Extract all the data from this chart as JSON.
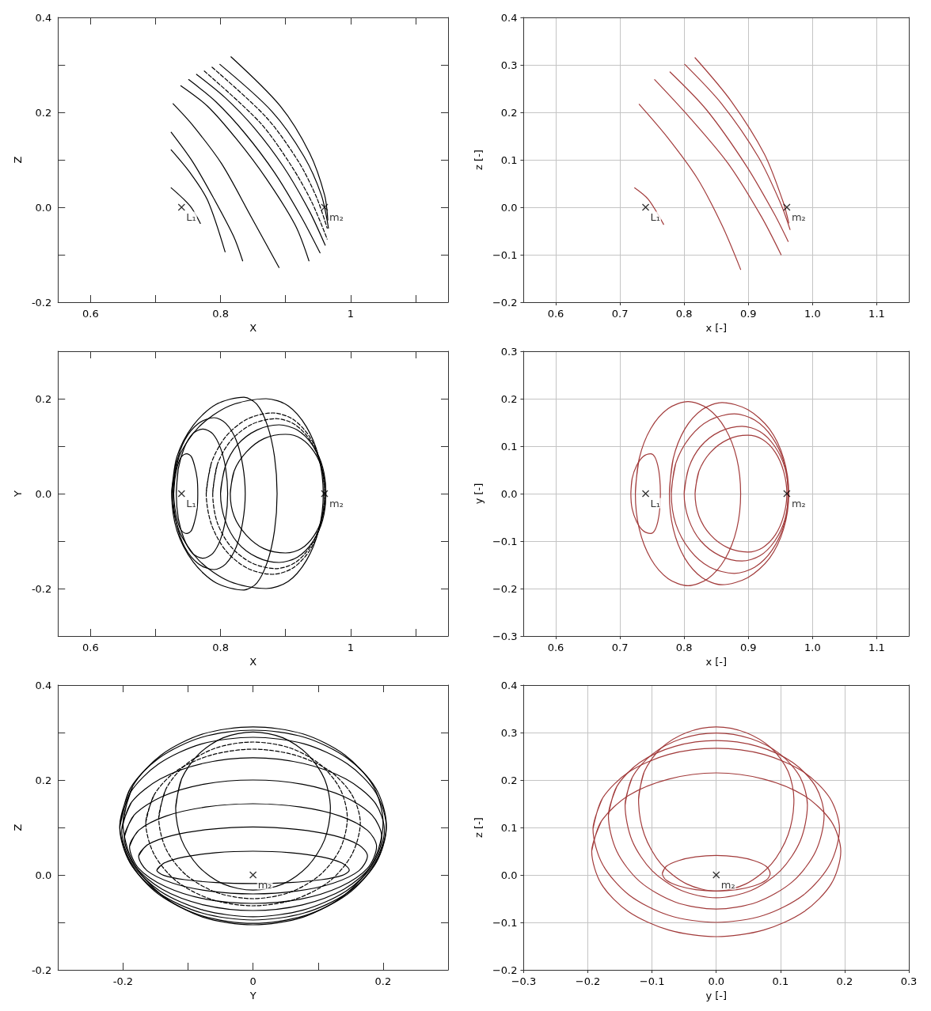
{
  "chart_data": [
    {
      "type": "line",
      "xlabel": "X",
      "ylabel": "Z",
      "xlim": [
        0.55,
        1.15
      ],
      "ylim": [
        -0.2,
        0.4
      ],
      "xticks": [
        0.6,
        {
          "value": 0.7,
          "label": null
        },
        0.8,
        {
          "value": 0.9,
          "label": null
        },
        1,
        {
          "value": 1.1,
          "label": null
        }
      ],
      "yticks": [
        -0.2,
        {
          "value": -0.1,
          "label": null
        },
        {
          "value": 0,
          "label": "0.0"
        },
        {
          "value": 0.1,
          "label": null
        },
        0.2,
        {
          "value": 0.3,
          "label": null
        },
        0.4
      ],
      "grid": false,
      "marker": "none",
      "annotations": [
        {
          "text": "L₁",
          "x": 0.74,
          "y": 0
        },
        {
          "text": "m₂",
          "x": 0.96,
          "y": 0
        }
      ],
      "series": [
        {
          "color": "#000000",
          "x": [
            0.724,
            0.753,
            0.769
          ],
          "values": [
            0.041,
            0.003,
            -0.034
          ]
        },
        {
          "color": "#000000",
          "x": [
            0.724,
            0.753,
            0.78,
            0.807
          ],
          "values": [
            0.121,
            0.073,
            0.015,
            -0.094
          ]
        },
        {
          "color": "#000000",
          "x": [
            0.724,
            0.757,
            0.789,
            0.82,
            0.834
          ],
          "values": [
            0.158,
            0.096,
            0.02,
            -0.061,
            -0.113
          ]
        },
        {
          "color": "#000000",
          "x": [
            0.727,
            0.757,
            0.802,
            0.847,
            0.89
          ],
          "values": [
            0.218,
            0.173,
            0.091,
            -0.02,
            -0.127
          ]
        },
        {
          "color": "#000000",
          "x": [
            0.739,
            0.78,
            0.825,
            0.87,
            0.915,
            0.936
          ],
          "values": [
            0.256,
            0.213,
            0.143,
            0.061,
            -0.038,
            -0.113
          ]
        },
        {
          "color": "#000000",
          "x": [
            0.751,
            0.793,
            0.838,
            0.883,
            0.924,
            0.953
          ],
          "values": [
            0.269,
            0.222,
            0.155,
            0.073,
            -0.02,
            -0.096
          ]
        },
        {
          "color": "#000000",
          "x": [
            0.763,
            0.807,
            0.852,
            0.897,
            0.937,
            0.961
          ],
          "values": [
            0.28,
            0.231,
            0.167,
            0.085,
            -0.009,
            -0.08
          ]
        },
        {
          "color": "#000000",
          "line_style": "dashed",
          "x": [
            0.775,
            0.861,
            0.91,
            0.941,
            0.964
          ],
          "values": [
            0.287,
            0.178,
            0.085,
            0.009,
            -0.067
          ]
        },
        {
          "color": "#000000",
          "line_style": "dashed",
          "x": [
            0.787,
            0.87,
            0.92,
            0.948,
            0.964
          ],
          "values": [
            0.295,
            0.19,
            0.096,
            0.02,
            -0.044
          ]
        },
        {
          "color": "#000000",
          "x": [
            0.799,
            0.879,
            0.928,
            0.955,
            0.966
          ],
          "values": [
            0.301,
            0.202,
            0.108,
            0.026,
            -0.044
          ]
        },
        {
          "color": "#000000",
          "x": [
            0.816,
            0.892,
            0.937,
            0.96,
            0.965
          ],
          "values": [
            0.317,
            0.213,
            0.114,
            0.026,
            -0.027
          ]
        },
        {
          "type": "scatter",
          "marker": "cross",
          "color": "#000000",
          "x": [
            0.74,
            0.96
          ],
          "values": [
            0,
            0
          ]
        }
      ]
    },
    {
      "type": "line",
      "xlabel": "x [-]",
      "ylabel": "z [-]",
      "xlim": [
        0.55,
        1.15
      ],
      "ylim": [
        -0.2,
        0.4
      ],
      "xticks": [
        0.6,
        0.7,
        0.8,
        0.9,
        {
          "value": 1,
          "label": "1.0"
        },
        1.1
      ],
      "yticks": [
        {
          "value": -0.2,
          "label": "−0.2"
        },
        {
          "value": -0.1,
          "label": "−0.1"
        },
        {
          "value": 0,
          "label": "0.0"
        },
        0.1,
        0.2,
        0.3,
        0.4
      ],
      "grid": true,
      "marker": "none",
      "annotations": [
        {
          "text": "L₁",
          "x": 0.74,
          "y": 0
        },
        {
          "text": "m₂",
          "x": 0.96,
          "y": 0
        }
      ],
      "series": [
        {
          "color": "#a23b3b",
          "x": [
            0.723,
            0.744,
            0.768
          ],
          "values": [
            0.041,
            0.017,
            -0.036
          ]
        },
        {
          "color": "#a23b3b",
          "x": [
            0.73,
            0.773,
            0.82,
            0.859,
            0.888
          ],
          "values": [
            0.217,
            0.149,
            0.062,
            -0.038,
            -0.131
          ]
        },
        {
          "color": "#a23b3b",
          "x": [
            0.754,
            0.806,
            0.868,
            0.92,
            0.951
          ],
          "values": [
            0.269,
            0.193,
            0.093,
            -0.019,
            -0.1
          ]
        },
        {
          "color": "#a23b3b",
          "x": [
            0.778,
            0.835,
            0.897,
            0.94,
            0.962
          ],
          "values": [
            0.285,
            0.205,
            0.087,
            -0.013,
            -0.072
          ]
        },
        {
          "color": "#a23b3b",
          "x": [
            0.801,
            0.859,
            0.916,
            0.951,
            0.965
          ],
          "values": [
            0.301,
            0.217,
            0.105,
            0.006,
            -0.047
          ]
        },
        {
          "color": "#a23b3b",
          "x": [
            0.817,
            0.873,
            0.925,
            0.954,
            0.963
          ],
          "values": [
            0.315,
            0.224,
            0.112,
            0.012,
            -0.033
          ]
        },
        {
          "type": "scatter",
          "marker": "cross",
          "color": "#000000",
          "x": [
            0.74,
            0.96
          ],
          "values": [
            0,
            0
          ]
        }
      ]
    },
    {
      "type": "line",
      "xlabel": "X",
      "ylabel": "Y",
      "xlim": [
        0.55,
        1.15
      ],
      "ylim": [
        -0.3,
        0.3
      ],
      "xticks": [
        0.6,
        {
          "value": 0.7,
          "label": null
        },
        0.8,
        {
          "value": 0.9,
          "label": null
        },
        1,
        {
          "value": 1.1,
          "label": null
        }
      ],
      "yticks": [
        -0.2,
        {
          "value": -0.1,
          "label": null
        },
        {
          "value": 0,
          "label": "0.0"
        },
        {
          "value": 0.1,
          "label": null
        },
        0.2
      ],
      "grid": false,
      "marker": "none",
      "annotations": [
        {
          "text": "L₁",
          "x": 0.74,
          "y": 0
        },
        {
          "text": "m₂",
          "x": 0.96,
          "y": 0
        }
      ],
      "series": [
        {
          "color": "#000000",
          "x": [
            0.728,
            0.73,
            0.734,
            0.74,
            0.748,
            0.755,
            0.76,
            0.764,
            0.765,
            0.764,
            0.76,
            0.755,
            0.748,
            0.74,
            0.734,
            0.73,
            0.728,
            0.73
          ],
          "values": [
            0,
            0.032,
            0.059,
            0.078,
            0.084,
            0.078,
            0.059,
            0.032,
            0,
            -0.032,
            -0.059,
            -0.078,
            -0.084,
            -0.078,
            -0.059,
            -0.032,
            0,
            0.032
          ]
        },
        {
          "color": "#000000",
          "x": [
            0.732,
            0.735,
            0.744,
            0.757,
            0.773,
            0.788,
            0.8,
            0.808,
            0.811,
            0.808,
            0.8,
            0.788,
            0.773,
            0.757,
            0.744,
            0.735,
            0.732,
            0.735
          ],
          "values": [
            0,
            0.052,
            0.096,
            0.126,
            0.136,
            0.126,
            0.096,
            0.052,
            0,
            -0.052,
            -0.096,
            -0.126,
            -0.136,
            -0.126,
            -0.096,
            -0.052,
            0,
            0.052
          ]
        },
        {
          "color": "#000000",
          "x": [
            0.727,
            0.732,
            0.745,
            0.766,
            0.79,
            0.808,
            0.824,
            0.834,
            0.838,
            0.834,
            0.824,
            0.808,
            0.79,
            0.766,
            0.745,
            0.732,
            0.727,
            0.732
          ],
          "values": [
            0,
            0.061,
            0.113,
            0.148,
            0.16,
            0.148,
            0.113,
            0.061,
            0,
            -0.061,
            -0.113,
            -0.148,
            -0.16,
            -0.148,
            -0.113,
            -0.061,
            0,
            0.061
          ]
        },
        {
          "color": "#000000",
          "x": [
            0.725,
            0.733,
            0.758,
            0.793,
            0.836,
            0.856,
            0.872,
            0.883,
            0.887,
            0.883,
            0.872,
            0.856,
            0.836,
            0.793,
            0.758,
            0.733,
            0.725,
            0.733
          ],
          "values": [
            0,
            0.078,
            0.144,
            0.188,
            0.203,
            0.188,
            0.144,
            0.078,
            0,
            -0.078,
            -0.144,
            -0.188,
            -0.203,
            -0.188,
            -0.144,
            -0.078,
            0,
            0.078
          ]
        },
        {
          "color": "#000000",
          "x": [
            0.725,
            0.736,
            0.767,
            0.814,
            0.87,
            0.904,
            0.932,
            0.951,
            0.958,
            0.951,
            0.932,
            0.904,
            0.87,
            0.814,
            0.767,
            0.736,
            0.725,
            0.736
          ],
          "values": [
            0,
            0.077,
            0.141,
            0.185,
            0.2,
            0.185,
            0.141,
            0.077,
            0,
            -0.077,
            -0.141,
            -0.185,
            -0.2,
            -0.185,
            -0.141,
            -0.077,
            0,
            0.077
          ]
        },
        {
          "color": "#000000",
          "line_style": "dashed",
          "x": [
            0.778,
            0.786,
            0.808,
            0.841,
            0.88,
            0.911,
            0.937,
            0.954,
            0.96,
            0.954,
            0.937,
            0.911,
            0.88,
            0.841,
            0.808,
            0.786,
            0.778,
            0.786
          ],
          "values": [
            0,
            0.065,
            0.12,
            0.157,
            0.17,
            0.157,
            0.12,
            0.065,
            0,
            -0.065,
            -0.12,
            -0.157,
            -0.17,
            -0.157,
            -0.12,
            -0.065,
            0,
            0.065
          ]
        },
        {
          "color": "#000000",
          "line_style": "dashed",
          "x": [
            0.788,
            0.795,
            0.816,
            0.848,
            0.885,
            0.914,
            0.938,
            0.954,
            0.96,
            0.954,
            0.938,
            0.914,
            0.885,
            0.848,
            0.816,
            0.795,
            0.788,
            0.795
          ],
          "values": [
            0,
            0.061,
            0.112,
            0.146,
            0.158,
            0.146,
            0.112,
            0.061,
            0,
            -0.061,
            -0.112,
            -0.146,
            -0.158,
            -0.146,
            -0.112,
            -0.061,
            0,
            0.061
          ]
        },
        {
          "color": "#000000",
          "x": [
            0.8,
            0.807,
            0.826,
            0.856,
            0.89,
            0.918,
            0.941,
            0.957,
            0.962,
            0.957,
            0.941,
            0.918,
            0.89,
            0.856,
            0.826,
            0.807,
            0.8,
            0.807
          ],
          "values": [
            0,
            0.056,
            0.103,
            0.134,
            0.145,
            0.134,
            0.103,
            0.056,
            0,
            -0.056,
            -0.103,
            -0.134,
            -0.145,
            -0.134,
            -0.103,
            -0.056,
            0,
            0.056
          ]
        },
        {
          "color": "#000000",
          "x": [
            0.815,
            0.821,
            0.84,
            0.867,
            0.9,
            0.924,
            0.944,
            0.957,
            0.962,
            0.957,
            0.944,
            0.924,
            0.9,
            0.867,
            0.84,
            0.821,
            0.815,
            0.821
          ],
          "values": [
            0,
            0.048,
            0.088,
            0.116,
            0.125,
            0.116,
            0.088,
            0.048,
            0,
            -0.048,
            -0.088,
            -0.116,
            -0.125,
            -0.116,
            -0.088,
            -0.048,
            0,
            0.048
          ]
        },
        {
          "type": "scatter",
          "marker": "cross",
          "color": "#000000",
          "x": [
            0.74,
            0.96
          ],
          "values": [
            0,
            0
          ]
        }
      ]
    },
    {
      "type": "line",
      "xlabel": "x [-]",
      "ylabel": "y [-]",
      "xlim": [
        0.55,
        1.15
      ],
      "ylim": [
        -0.3,
        0.3
      ],
      "xticks": [
        0.6,
        0.7,
        0.8,
        0.9,
        {
          "value": 1,
          "label": "1.0"
        },
        1.1
      ],
      "yticks": [
        {
          "value": -0.3,
          "label": "−0.3"
        },
        {
          "value": -0.2,
          "label": "−0.2"
        },
        {
          "value": -0.1,
          "label": "−0.1"
        },
        {
          "value": 0,
          "label": "0.0"
        },
        0.1,
        0.2,
        0.3
      ],
      "grid": true,
      "marker": "none",
      "annotations": [
        {
          "text": "L₁",
          "x": 0.74,
          "y": 0
        },
        {
          "text": "m₂",
          "x": 0.96,
          "y": 0
        }
      ],
      "series": [
        {
          "color": "#a23b3b",
          "x": [
            0.717,
            0.719,
            0.726,
            0.736,
            0.748,
            0.754,
            0.759,
            0.762,
            0.763,
            0.762,
            0.759,
            0.754,
            0.748,
            0.736,
            0.726,
            0.719,
            0.717,
            0.719
          ],
          "values": [
            0,
            0.032,
            0.059,
            0.078,
            0.084,
            0.078,
            0.059,
            0.032,
            0,
            -0.032,
            -0.059,
            -0.078,
            -0.084,
            -0.078,
            -0.059,
            -0.032,
            0,
            0.032
          ]
        },
        {
          "color": "#a23b3b",
          "x": [
            0.724,
            0.73,
            0.748,
            0.775,
            0.806,
            0.837,
            0.864,
            0.882,
            0.888,
            0.882,
            0.864,
            0.837,
            0.806,
            0.775,
            0.748,
            0.73,
            0.724,
            0.73
          ],
          "values": [
            0,
            0.074,
            0.137,
            0.179,
            0.194,
            0.179,
            0.137,
            0.074,
            0,
            -0.074,
            -0.137,
            -0.179,
            -0.194,
            -0.179,
            -0.137,
            -0.074,
            0,
            0.074
          ]
        },
        {
          "color": "#a23b3b",
          "x": [
            0.777,
            0.783,
            0.801,
            0.828,
            0.859,
            0.899,
            0.933,
            0.955,
            0.963,
            0.955,
            0.933,
            0.899,
            0.859,
            0.828,
            0.801,
            0.783,
            0.777,
            0.783
          ],
          "values": [
            0,
            0.074,
            0.136,
            0.177,
            0.192,
            0.177,
            0.136,
            0.074,
            0,
            -0.074,
            -0.136,
            -0.177,
            -0.192,
            -0.177,
            -0.136,
            -0.074,
            0,
            0.074
          ]
        },
        {
          "color": "#a23b3b",
          "x": [
            0.78,
            0.787,
            0.809,
            0.84,
            0.878,
            0.91,
            0.937,
            0.956,
            0.962,
            0.956,
            0.937,
            0.91,
            0.878,
            0.84,
            0.809,
            0.787,
            0.78,
            0.787
          ],
          "values": [
            0,
            0.064,
            0.119,
            0.155,
            0.168,
            0.155,
            0.119,
            0.064,
            0,
            -0.064,
            -0.119,
            -0.155,
            -0.168,
            -0.155,
            -0.119,
            -0.064,
            0,
            0.064
          ]
        },
        {
          "color": "#a23b3b",
          "x": [
            0.8,
            0.807,
            0.826,
            0.856,
            0.89,
            0.918,
            0.941,
            0.957,
            0.962,
            0.957,
            0.941,
            0.918,
            0.89,
            0.856,
            0.826,
            0.807,
            0.8,
            0.807
          ],
          "values": [
            0,
            0.054,
            0.1,
            0.131,
            0.142,
            0.131,
            0.1,
            0.054,
            0,
            -0.054,
            -0.1,
            -0.131,
            -0.142,
            -0.131,
            -0.1,
            -0.054,
            0,
            0.054
          ]
        },
        {
          "color": "#a23b3b",
          "x": [
            0.817,
            0.823,
            0.841,
            0.868,
            0.899,
            0.922,
            0.942,
            0.955,
            0.96,
            0.955,
            0.942,
            0.922,
            0.899,
            0.868,
            0.841,
            0.823,
            0.817,
            0.823
          ],
          "values": [
            0,
            0.047,
            0.087,
            0.114,
            0.123,
            0.114,
            0.087,
            0.047,
            0,
            -0.047,
            -0.087,
            -0.114,
            -0.123,
            -0.114,
            -0.087,
            -0.047,
            0,
            0.047
          ]
        },
        {
          "type": "scatter",
          "marker": "cross",
          "color": "#000000",
          "x": [
            0.74,
            0.96
          ],
          "values": [
            0,
            0
          ]
        }
      ]
    },
    {
      "type": "line",
      "xlabel": "Y",
      "ylabel": "Z",
      "xlim": [
        -0.3,
        0.3
      ],
      "ylim": [
        -0.2,
        0.4
      ],
      "xticks": [
        -0.2,
        {
          "value": -0.1,
          "label": null
        },
        0,
        {
          "value": 0.1,
          "label": null
        },
        0.2
      ],
      "yticks": [
        -0.2,
        {
          "value": -0.1,
          "label": null
        },
        {
          "value": 0,
          "label": "0.0"
        },
        {
          "value": 0.1,
          "label": null
        },
        0.2,
        {
          "value": 0.3,
          "label": null
        },
        0.4
      ],
      "grid": false,
      "marker": "none",
      "annotations": [
        {
          "text": "m₂",
          "x": 0,
          "y": 0
        }
      ],
      "series": [
        {
          "color": "#000000",
          "x": [
            -0.148,
            -0.137,
            -0.105,
            -0.057,
            0,
            0.057,
            0.105,
            0.137,
            0.148,
            0.137,
            0.105,
            0.057,
            0,
            -0.057,
            -0.105,
            -0.137,
            -0.148,
            -0.137
          ],
          "values": [
            0.01,
            0.025,
            0.038,
            0.047,
            0.05,
            0.047,
            0.038,
            0.025,
            0.01,
            -0.001,
            -0.01,
            -0.016,
            -0.018,
            -0.016,
            -0.01,
            -0.001,
            0.01,
            0.025
          ]
        },
        {
          "color": "#000000",
          "x": [
            -0.119,
            -0.11,
            -0.084,
            -0.046,
            0,
            0.046,
            0.084,
            0.11,
            0.119,
            0.11,
            0.084,
            0.046,
            0,
            -0.046,
            -0.084,
            -0.11,
            -0.119,
            -0.11
          ],
          "values": [
            0.14,
            0.202,
            0.254,
            0.289,
            0.301,
            0.289,
            0.254,
            0.202,
            0.14,
            0.074,
            0.018,
            -0.019,
            -0.032,
            -0.019,
            0.018,
            0.074,
            0.14,
            0.202
          ]
        },
        {
          "color": "#000000",
          "x": [
            -0.176,
            -0.163,
            -0.124,
            -0.067,
            0,
            0.067,
            0.124,
            0.163,
            0.176,
            0.163,
            0.124,
            0.067,
            0,
            -0.067,
            -0.124,
            -0.163,
            -0.176,
            -0.163
          ],
          "values": [
            0.04,
            0.063,
            0.083,
            0.096,
            0.101,
            0.096,
            0.083,
            0.063,
            0.04,
            0.009,
            -0.017,
            -0.034,
            -0.04,
            -0.034,
            -0.017,
            0.009,
            0.04,
            0.063
          ]
        },
        {
          "color": "#000000",
          "x": [
            -0.19,
            -0.176,
            -0.134,
            -0.073,
            0,
            0.073,
            0.134,
            0.176,
            0.19,
            0.176,
            0.134,
            0.073,
            0,
            -0.073,
            -0.134,
            -0.176,
            -0.19,
            -0.176
          ],
          "values": [
            0.06,
            0.094,
            0.124,
            0.143,
            0.15,
            0.143,
            0.124,
            0.094,
            0.06,
            0.014,
            -0.025,
            -0.051,
            -0.06,
            -0.051,
            -0.025,
            0.014,
            0.06,
            0.094
          ]
        },
        {
          "color": "#000000",
          "x": [
            -0.198,
            -0.183,
            -0.14,
            -0.076,
            0,
            0.076,
            0.14,
            0.183,
            0.198,
            0.183,
            0.14,
            0.076,
            0,
            -0.076,
            -0.14,
            -0.183,
            -0.198,
            -0.183
          ],
          "values": [
            0.08,
            0.126,
            0.165,
            0.191,
            0.2,
            0.191,
            0.165,
            0.126,
            0.08,
            0.021,
            -0.03,
            -0.063,
            -0.075,
            -0.063,
            -0.03,
            0.021,
            0.08,
            0.126
          ]
        },
        {
          "color": "#000000",
          "x": [
            -0.202,
            -0.187,
            -0.143,
            -0.077,
            0,
            0.077,
            0.143,
            0.187,
            0.202,
            0.187,
            0.143,
            0.077,
            0,
            -0.077,
            -0.143,
            -0.187,
            -0.202,
            -0.187
          ],
          "values": [
            0.095,
            0.153,
            0.202,
            0.235,
            0.247,
            0.235,
            0.202,
            0.153,
            0.095,
            0.025,
            -0.034,
            -0.074,
            -0.088,
            -0.074,
            -0.034,
            0.025,
            0.095,
            0.153
          ]
        },
        {
          "color": "#000000",
          "line_style": "dashed",
          "x": [
            -0.165,
            -0.152,
            -0.117,
            -0.063,
            0,
            0.063,
            0.117,
            0.152,
            0.165,
            0.152,
            0.117,
            0.063,
            0,
            -0.063,
            -0.117,
            -0.152,
            -0.165,
            -0.152
          ],
          "values": [
            0.11,
            0.169,
            0.22,
            0.253,
            0.265,
            0.253,
            0.22,
            0.169,
            0.11,
            0.043,
            -0.014,
            -0.052,
            -0.065,
            -0.052,
            -0.014,
            0.043,
            0.11,
            0.169
          ]
        },
        {
          "color": "#000000",
          "line_style": "dashed",
          "x": [
            -0.145,
            -0.134,
            -0.103,
            -0.056,
            0,
            0.056,
            0.103,
            0.134,
            0.145,
            0.134,
            0.103,
            0.056,
            0,
            -0.056,
            -0.103,
            -0.134,
            -0.145,
            -0.134
          ],
          "values": [
            0.12,
            0.181,
            0.233,
            0.268,
            0.28,
            0.268,
            0.233,
            0.181,
            0.12,
            0.055,
            0.0,
            -0.037,
            -0.05,
            -0.037,
            0.0,
            0.055,
            0.12,
            0.181
          ]
        },
        {
          "color": "#000000",
          "x": [
            -0.205,
            -0.189,
            -0.145,
            -0.079,
            0,
            0.079,
            0.145,
            0.189,
            0.205,
            0.189,
            0.145,
            0.079,
            0,
            -0.079,
            -0.145,
            -0.189,
            -0.205,
            -0.189
          ],
          "values": [
            0.1,
            0.173,
            0.234,
            0.276,
            0.29,
            0.276,
            0.234,
            0.173,
            0.1,
            0.025,
            -0.038,
            -0.08,
            -0.095,
            -0.08,
            -0.038,
            0.025,
            0.1,
            0.173
          ]
        },
        {
          "color": "#000000",
          "x": [
            -0.205,
            -0.189,
            -0.145,
            -0.079,
            0,
            0.079,
            0.145,
            0.189,
            0.205,
            0.189,
            0.145,
            0.079,
            0,
            -0.079,
            -0.145,
            -0.189,
            -0.205,
            -0.189
          ],
          "values": [
            0.105,
            0.182,
            0.246,
            0.29,
            0.305,
            0.29,
            0.246,
            0.182,
            0.105,
            0.026,
            -0.041,
            -0.086,
            -0.102,
            -0.086,
            -0.041,
            0.026,
            0.105,
            0.182
          ]
        },
        {
          "color": "#000000",
          "x": [
            -0.2,
            -0.185,
            -0.141,
            -0.077,
            0,
            0.077,
            0.141,
            0.185,
            0.2,
            0.185,
            0.141,
            0.077,
            0,
            -0.077,
            -0.141,
            -0.185,
            -0.2,
            -0.185
          ],
          "values": [
            0.11,
            0.187,
            0.253,
            0.297,
            0.312,
            0.297,
            0.253,
            0.187,
            0.11,
            0.028,
            -0.042,
            -0.089,
            -0.105,
            -0.089,
            -0.042,
            0.028,
            0.11,
            0.187
          ]
        },
        {
          "type": "scatter",
          "marker": "cross",
          "color": "#000000",
          "x": [
            0
          ],
          "values": [
            0
          ]
        }
      ]
    },
    {
      "type": "line",
      "xlabel": "y [-]",
      "ylabel": "z [-]",
      "xlim": [
        -0.3,
        0.3
      ],
      "ylim": [
        -0.2,
        0.4
      ],
      "xticks": [
        {
          "value": -0.3,
          "label": "−0.3"
        },
        {
          "value": -0.2,
          "label": "−0.2"
        },
        {
          "value": -0.1,
          "label": "−0.1"
        },
        {
          "value": 0,
          "label": "0.0"
        },
        0.1,
        0.2,
        0.3
      ],
      "yticks": [
        {
          "value": -0.2,
          "label": "−0.2"
        },
        {
          "value": -0.1,
          "label": "−0.1"
        },
        {
          "value": 0,
          "label": "0.0"
        },
        0.1,
        0.2,
        0.3,
        0.4
      ],
      "grid": true,
      "marker": "none",
      "annotations": [
        {
          "text": "m₂",
          "x": 0,
          "y": 0
        }
      ],
      "series": [
        {
          "color": "#a23b3b",
          "x": [
            -0.084,
            -0.078,
            -0.059,
            -0.032,
            0,
            0.032,
            0.059,
            0.078,
            0.084,
            0.078,
            0.059,
            0.032,
            0,
            -0.032,
            -0.059,
            -0.078,
            -0.084,
            -0.078
          ],
          "values": [
            0.003,
            0.018,
            0.03,
            0.038,
            0.041,
            0.038,
            0.03,
            0.018,
            0.003,
            -0.011,
            -0.023,
            -0.031,
            -0.034,
            -0.031,
            -0.023,
            -0.011,
            0.003,
            0.018
          ]
        },
        {
          "color": "#a23b3b",
          "x": [
            -0.121,
            -0.112,
            -0.086,
            -0.046,
            0,
            0.046,
            0.086,
            0.112,
            0.121,
            0.112,
            0.086,
            0.046,
            0,
            -0.046,
            -0.086,
            -0.112,
            -0.121,
            -0.112
          ],
          "values": [
            0.159,
            0.218,
            0.267,
            0.3,
            0.312,
            0.3,
            0.267,
            0.218,
            0.159,
            0.085,
            0.023,
            -0.019,
            -0.034,
            -0.019,
            0.023,
            0.085,
            0.159,
            0.218
          ]
        },
        {
          "color": "#a23b3b",
          "x": [
            -0.142,
            -0.131,
            -0.1,
            -0.054,
            0,
            0.054,
            0.1,
            0.131,
            0.142,
            0.131,
            0.1,
            0.054,
            0,
            -0.054,
            -0.1,
            -0.131,
            -0.142,
            -0.131
          ],
          "values": [
            0.147,
            0.205,
            0.254,
            0.287,
            0.299,
            0.287,
            0.254,
            0.205,
            0.147,
            0.072,
            0.009,
            -0.033,
            -0.048,
            -0.033,
            0.009,
            0.072,
            0.147,
            0.205
          ]
        },
        {
          "color": "#a23b3b",
          "x": [
            -0.168,
            -0.155,
            -0.119,
            -0.064,
            0,
            0.064,
            0.119,
            0.155,
            0.168,
            0.155,
            0.119,
            0.064,
            0,
            -0.064,
            -0.119,
            -0.155,
            -0.168,
            -0.155
          ],
          "values": [
            0.125,
            0.186,
            0.237,
            0.271,
            0.283,
            0.271,
            0.237,
            0.186,
            0.125,
            0.05,
            -0.014,
            -0.057,
            -0.072,
            -0.057,
            -0.014,
            0.05,
            0.125,
            0.186
          ]
        },
        {
          "color": "#a23b3b",
          "x": [
            -0.192,
            -0.177,
            -0.136,
            -0.074,
            0,
            0.074,
            0.136,
            0.177,
            0.192,
            0.177,
            0.136,
            0.074,
            0,
            -0.074,
            -0.136,
            -0.177,
            -0.192,
            -0.177
          ],
          "values": [
            0.097,
            0.162,
            0.217,
            0.254,
            0.267,
            0.254,
            0.217,
            0.162,
            0.097,
            0.022,
            -0.042,
            -0.085,
            -0.1,
            -0.085,
            -0.042,
            0.022,
            0.097,
            0.162
          ]
        },
        {
          "color": "#a23b3b",
          "x": [
            -0.194,
            -0.179,
            -0.137,
            -0.074,
            0,
            0.074,
            0.137,
            0.179,
            0.194,
            0.179,
            0.137,
            0.074,
            0,
            -0.074,
            -0.137,
            -0.179,
            -0.194,
            -0.179
          ],
          "values": [
            0.05,
            0.113,
            0.167,
            0.202,
            0.215,
            0.202,
            0.167,
            0.113,
            0.05,
            -0.019,
            -0.077,
            -0.116,
            -0.13,
            -0.116,
            -0.077,
            -0.019,
            0.05,
            0.113
          ]
        },
        {
          "type": "scatter",
          "marker": "cross",
          "color": "#000000",
          "x": [
            0
          ],
          "values": [
            0
          ]
        }
      ]
    }
  ]
}
